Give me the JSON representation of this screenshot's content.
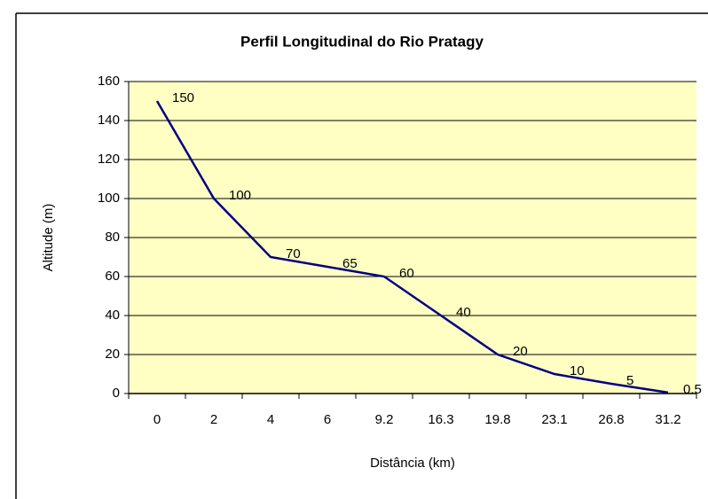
{
  "chart_data": {
    "type": "line",
    "title": "Perfil Longitudinal do Rio Pratagy",
    "x_label": "Distância (km)",
    "y_label": "Altitude (m)",
    "categories": [
      "0",
      "2",
      "4",
      "6",
      "9.2",
      "16.3",
      "19.8",
      "23.1",
      "26.8",
      "31.2"
    ],
    "values": [
      150,
      100,
      70,
      65,
      60,
      40,
      20,
      10,
      5,
      0.5
    ],
    "color": "#000080",
    "background": "#ffffc4",
    "ylim": [
      0,
      160
    ],
    "yticks": [
      0,
      20,
      40,
      60,
      80,
      100,
      120,
      140,
      160
    ],
    "grid": true
  }
}
